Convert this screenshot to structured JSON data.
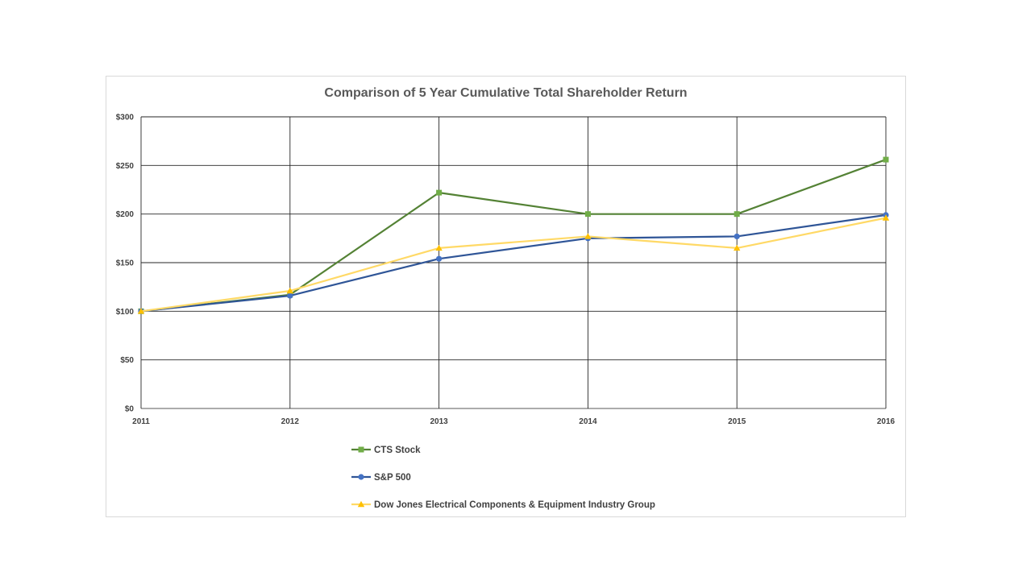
{
  "chart_data": {
    "type": "line",
    "title": "Comparison of 5 Year Cumulative Total Shareholder Return",
    "categories": [
      "2011",
      "2012",
      "2013",
      "2014",
      "2015",
      "2016"
    ],
    "y_tick_labels": [
      "$0",
      "$50",
      "$100",
      "$150",
      "$200",
      "$250",
      "$300"
    ],
    "ylim": [
      0,
      300
    ],
    "grid": true,
    "legend_position": "bottom",
    "series": [
      {
        "name": "CTS Stock",
        "color": "#548235",
        "marker_color": "#70ad47",
        "marker": "square",
        "values": [
          100,
          117,
          222,
          200,
          200,
          256
        ]
      },
      {
        "name": "S&P 500",
        "color": "#2f5597",
        "marker_color": "#4472c4",
        "marker": "circle",
        "values": [
          100,
          116,
          154,
          175,
          177,
          199
        ]
      },
      {
        "name": "Dow Jones Electrical Components & Equipment Industry Group",
        "color": "#ffd966",
        "marker_color": "#ffc000",
        "marker": "triangle",
        "values": [
          100,
          121,
          165,
          177,
          165,
          196
        ]
      }
    ]
  }
}
